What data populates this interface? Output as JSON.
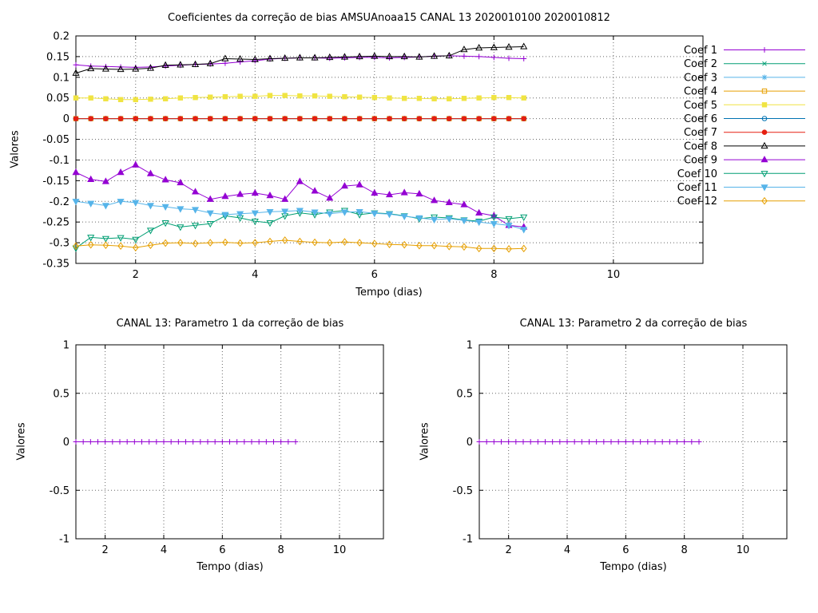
{
  "figure": {
    "background": "#ffffff",
    "grid_color": "#666666",
    "axis_color": "#000000"
  },
  "chart_data": [
    {
      "type": "line",
      "title": "Coeficientes da correção de bias AMSUAnoaa15 CANAL 13 2020010100 2020010812",
      "xlabel": "Tempo (dias)",
      "ylabel": "Valores",
      "xlim": [
        1.0,
        11.5
      ],
      "ylim": [
        -0.35,
        0.2
      ],
      "xtick_values": [
        2,
        4,
        6,
        8,
        10
      ],
      "xtick_labels": [
        "2",
        "4",
        "6",
        "8",
        "10"
      ],
      "ytick_values": [
        0.2,
        0.15,
        0.1,
        0.05,
        0,
        -0.05,
        -0.1,
        -0.15,
        -0.2,
        -0.25,
        -0.3,
        -0.35
      ],
      "ytick_labels": [
        "0.2",
        "0.15",
        "0.1",
        "0.05",
        "0",
        "-0.05",
        "-0.1",
        "-0.15",
        "-0.2",
        "-0.25",
        "-0.3",
        "-0.35"
      ],
      "grid": true,
      "legend": {
        "show": true,
        "position": "outside-right"
      },
      "x": [
        1,
        1.25,
        1.5,
        1.75,
        2,
        2.25,
        2.5,
        2.75,
        3,
        3.25,
        3.5,
        3.75,
        4,
        4.25,
        4.5,
        4.75,
        5,
        5.25,
        5.5,
        5.75,
        6,
        6.25,
        6.5,
        6.75,
        7,
        7.25,
        7.5,
        7.75,
        8,
        8.25,
        8.5
      ],
      "series": [
        {
          "name": "Coef 1",
          "color": "#9400d3",
          "marker": "plus",
          "values": [
            0.13,
            0.127,
            0.126,
            0.125,
            0.124,
            0.125,
            0.127,
            0.129,
            0.131,
            0.132,
            0.134,
            0.137,
            0.14,
            0.144,
            0.146,
            0.147,
            0.147,
            0.146,
            0.147,
            0.148,
            0.148,
            0.147,
            0.148,
            0.149,
            0.151,
            0.152,
            0.151,
            0.15,
            0.148,
            0.146,
            0.145
          ]
        },
        {
          "name": "Coef 2",
          "color": "#009e73",
          "marker": "cross",
          "values": [
            0,
            0,
            0,
            0,
            0,
            0,
            0,
            0,
            0,
            0,
            0,
            0,
            0,
            0,
            0,
            0,
            0,
            0,
            0,
            0,
            0,
            0,
            0,
            0,
            0,
            0,
            0,
            0,
            0,
            0,
            0
          ]
        },
        {
          "name": "Coef 3",
          "color": "#56b4e9",
          "marker": "star",
          "values": [
            0,
            0,
            0,
            0,
            0,
            0,
            0,
            0,
            0,
            0,
            0,
            0,
            0,
            0,
            0,
            0,
            0,
            0,
            0,
            0,
            0,
            0,
            0,
            0,
            0,
            0,
            0,
            0,
            0,
            0,
            0
          ]
        },
        {
          "name": "Coef 4",
          "color": "#e69f00",
          "marker": "square-open",
          "values": [
            0,
            0,
            0,
            0,
            0,
            0,
            0,
            0,
            0,
            0,
            0,
            0,
            0,
            0,
            0,
            0,
            0,
            0,
            0,
            0,
            0,
            0,
            0,
            0,
            0,
            0,
            0,
            0,
            0,
            0,
            0
          ]
        },
        {
          "name": "Coef 5",
          "color": "#f0e442",
          "marker": "square-filled",
          "values": [
            0.05,
            0.05,
            0.048,
            0.046,
            0.046,
            0.047,
            0.048,
            0.05,
            0.051,
            0.052,
            0.053,
            0.054,
            0.054,
            0.056,
            0.056,
            0.055,
            0.055,
            0.054,
            0.053,
            0.052,
            0.051,
            0.05,
            0.049,
            0.049,
            0.048,
            0.048,
            0.049,
            0.05,
            0.051,
            0.051,
            0.05
          ]
        },
        {
          "name": "Coef 6",
          "color": "#0072b2",
          "marker": "circle-open",
          "values": [
            0,
            0,
            0,
            0,
            0,
            0,
            0,
            0,
            0,
            0,
            0,
            0,
            0,
            0,
            0,
            0,
            0,
            0,
            0,
            0,
            0,
            0,
            0,
            0,
            0,
            0,
            0,
            0,
            0,
            0,
            0
          ]
        },
        {
          "name": "Coef 7",
          "color": "#e51e10",
          "marker": "circle-filled",
          "values": [
            0,
            0,
            0,
            0,
            0,
            0,
            0,
            0,
            0,
            0,
            0,
            0,
            0,
            0,
            0,
            0,
            0,
            0,
            0,
            0,
            0,
            0,
            0,
            0,
            0,
            0,
            0,
            0,
            0,
            0,
            0
          ]
        },
        {
          "name": "Coef 8",
          "color": "#000000",
          "marker": "triangle-up-open",
          "values": [
            0.11,
            0.121,
            0.12,
            0.119,
            0.12,
            0.122,
            0.129,
            0.13,
            0.131,
            0.133,
            0.145,
            0.144,
            0.143,
            0.145,
            0.146,
            0.147,
            0.147,
            0.148,
            0.149,
            0.15,
            0.151,
            0.15,
            0.15,
            0.149,
            0.151,
            0.152,
            0.167,
            0.171,
            0.172,
            0.173,
            0.174
          ]
        },
        {
          "name": "Coef 9",
          "color": "#9400d3",
          "marker": "triangle-up-filled",
          "values": [
            -0.13,
            -0.147,
            -0.152,
            -0.13,
            -0.112,
            -0.133,
            -0.148,
            -0.155,
            -0.177,
            -0.195,
            -0.188,
            -0.183,
            -0.18,
            -0.186,
            -0.195,
            -0.152,
            -0.175,
            -0.192,
            -0.163,
            -0.16,
            -0.18,
            -0.184,
            -0.179,
            -0.182,
            -0.198,
            -0.203,
            -0.208,
            -0.228,
            -0.235,
            -0.258,
            -0.262
          ]
        },
        {
          "name": "Coef 10",
          "color": "#009e73",
          "marker": "triangle-down-open",
          "values": [
            -0.313,
            -0.287,
            -0.29,
            -0.288,
            -0.292,
            -0.27,
            -0.252,
            -0.262,
            -0.258,
            -0.254,
            -0.235,
            -0.24,
            -0.248,
            -0.252,
            -0.235,
            -0.228,
            -0.232,
            -0.226,
            -0.222,
            -0.232,
            -0.228,
            -0.23,
            -0.235,
            -0.242,
            -0.238,
            -0.24,
            -0.245,
            -0.248,
            -0.238,
            -0.242,
            -0.238
          ]
        },
        {
          "name": "Coef 11",
          "color": "#56b4e9",
          "marker": "triangle-down-filled",
          "values": [
            -0.2,
            -0.205,
            -0.21,
            -0.2,
            -0.203,
            -0.21,
            -0.213,
            -0.218,
            -0.22,
            -0.228,
            -0.232,
            -0.23,
            -0.228,
            -0.225,
            -0.224,
            -0.222,
            -0.226,
            -0.23,
            -0.226,
            -0.225,
            -0.229,
            -0.231,
            -0.236,
            -0.24,
            -0.244,
            -0.242,
            -0.246,
            -0.25,
            -0.254,
            -0.258,
            -0.268
          ]
        },
        {
          "name": "Coef 12",
          "color": "#e69f00",
          "marker": "diamond-open",
          "values": [
            -0.308,
            -0.305,
            -0.306,
            -0.308,
            -0.312,
            -0.306,
            -0.301,
            -0.3,
            -0.302,
            -0.3,
            -0.299,
            -0.301,
            -0.3,
            -0.297,
            -0.294,
            -0.297,
            -0.299,
            -0.3,
            -0.298,
            -0.3,
            -0.302,
            -0.304,
            -0.305,
            -0.307,
            -0.307,
            -0.309,
            -0.31,
            -0.314,
            -0.314,
            -0.315,
            -0.314
          ]
        }
      ]
    },
    {
      "type": "line",
      "title": "CANAL 13: Parametro 1 da correção de bias",
      "xlabel": "Tempo (dias)",
      "ylabel": "Valores",
      "xlim": [
        1.0,
        11.5
      ],
      "ylim": [
        -1,
        1
      ],
      "xtick_values": [
        2,
        4,
        6,
        8,
        10
      ],
      "xtick_labels": [
        "2",
        "4",
        "6",
        "8",
        "10"
      ],
      "ytick_values": [
        1,
        0.5,
        0,
        -0.5,
        -1
      ],
      "ytick_labels": [
        "1",
        "0.5",
        "0",
        "-0.5",
        "-1"
      ],
      "grid": true,
      "legend": {
        "show": false
      },
      "x": [
        1,
        1.25,
        1.5,
        1.75,
        2,
        2.25,
        2.5,
        2.75,
        3,
        3.25,
        3.5,
        3.75,
        4,
        4.25,
        4.5,
        4.75,
        5,
        5.25,
        5.5,
        5.75,
        6,
        6.25,
        6.5,
        6.75,
        7,
        7.25,
        7.5,
        7.75,
        8,
        8.25,
        8.5
      ],
      "series": [
        {
          "name": "",
          "color": "#9400d3",
          "marker": "plus",
          "values": [
            0,
            0,
            0,
            0,
            0,
            0,
            0,
            0,
            0,
            0,
            0,
            0,
            0,
            0,
            0,
            0,
            0,
            0,
            0,
            0,
            0,
            0,
            0,
            0,
            0,
            0,
            0,
            0,
            0,
            0,
            0
          ]
        }
      ]
    },
    {
      "type": "line",
      "title": "CANAL 13: Parametro 2 da correção de bias",
      "xlabel": "Tempo (dias)",
      "ylabel": "Valores",
      "xlim": [
        1.0,
        11.5
      ],
      "ylim": [
        -1,
        1
      ],
      "xtick_values": [
        2,
        4,
        6,
        8,
        10
      ],
      "xtick_labels": [
        "2",
        "4",
        "6",
        "8",
        "10"
      ],
      "ytick_values": [
        1,
        0.5,
        0,
        -0.5,
        -1
      ],
      "ytick_labels": [
        "1",
        "0.5",
        "0",
        "-0.5",
        "-1"
      ],
      "grid": true,
      "legend": {
        "show": false
      },
      "x": [
        1,
        1.25,
        1.5,
        1.75,
        2,
        2.25,
        2.5,
        2.75,
        3,
        3.25,
        3.5,
        3.75,
        4,
        4.25,
        4.5,
        4.75,
        5,
        5.25,
        5.5,
        5.75,
        6,
        6.25,
        6.5,
        6.75,
        7,
        7.25,
        7.5,
        7.75,
        8,
        8.25,
        8.5
      ],
      "series": [
        {
          "name": "",
          "color": "#9400d3",
          "marker": "plus",
          "values": [
            0,
            0,
            0,
            0,
            0,
            0,
            0,
            0,
            0,
            0,
            0,
            0,
            0,
            0,
            0,
            0,
            0,
            0,
            0,
            0,
            0,
            0,
            0,
            0,
            0,
            0,
            0,
            0,
            0,
            0,
            0
          ]
        }
      ]
    }
  ]
}
